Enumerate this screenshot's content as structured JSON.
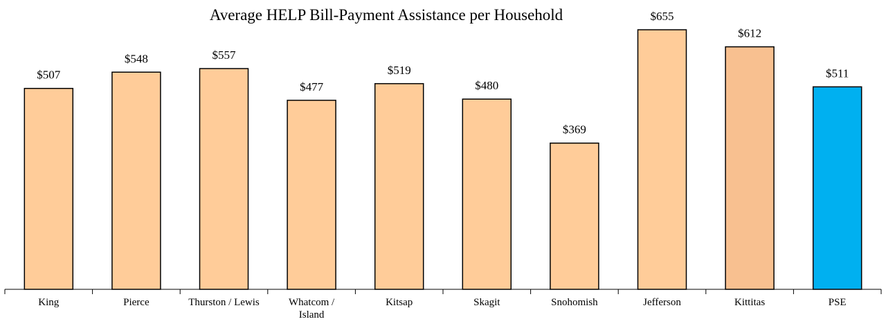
{
  "chart_data": {
    "type": "bar",
    "title": "Average HELP Bill-Payment Assistance per Household",
    "categories": [
      "King",
      "Pierce",
      "Thurston / Lewis",
      "Whatcom /\nIsland",
      "Kitsap",
      "Skagit",
      "Snohomish",
      "Jefferson",
      "Kittitas",
      "PSE"
    ],
    "values": [
      507,
      548,
      557,
      477,
      519,
      480,
      369,
      655,
      612,
      511
    ],
    "value_labels": [
      "$507",
      "$548",
      "$557",
      "$477",
      "$519",
      "$480",
      "$369",
      "$655",
      "$612",
      "$511"
    ],
    "colors": [
      "#ffcc99",
      "#ffcc99",
      "#ffcc99",
      "#ffcc99",
      "#ffcc99",
      "#ffcc99",
      "#ffcc99",
      "#ffcc99",
      "#f8c090",
      "#00b0f0"
    ]
  }
}
